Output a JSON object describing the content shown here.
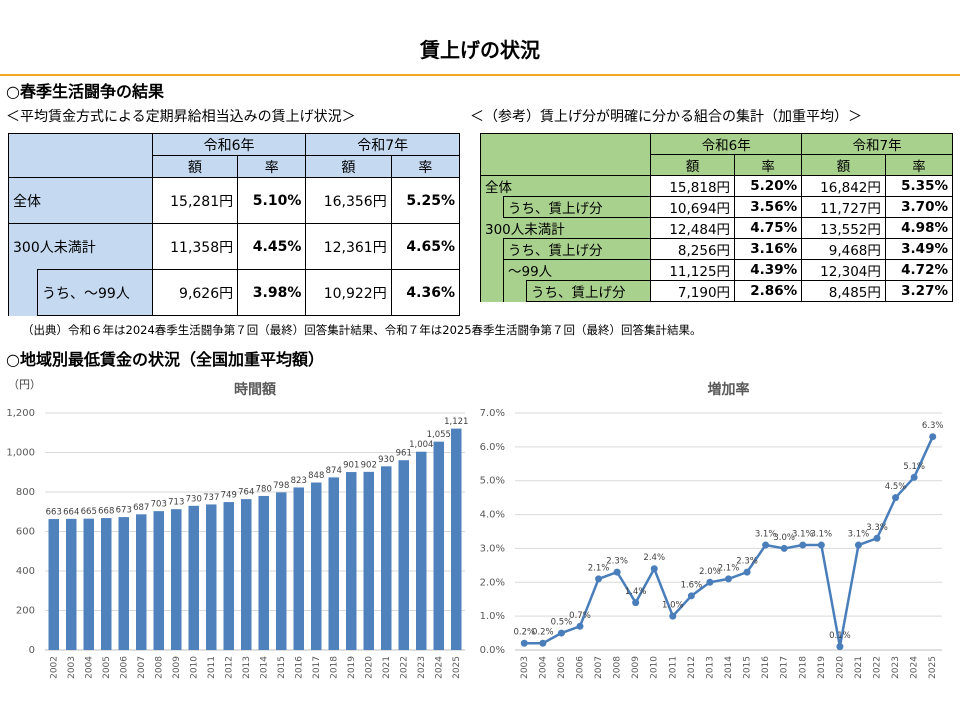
{
  "header": {
    "title": "賃上げの状況"
  },
  "section1": {
    "heading": "○春季生活闘争の結果"
  },
  "table1": {
    "caption": "＜平均賃金方式による定期昇給相当込みの賃上げ状況＞",
    "years": [
      "令和6年",
      "令和7年"
    ],
    "cols": [
      "額",
      "率",
      "額",
      "率"
    ],
    "rows": [
      [
        "全体",
        "15,281円",
        "5.10%",
        "16,356円",
        "5.25%"
      ],
      [
        "300人未満計",
        "11,358円",
        "4.45%",
        "12,361円",
        "4.65%"
      ],
      [
        "うち、～99人",
        "9,626円",
        "3.98%",
        "10,922円",
        "4.36%"
      ]
    ]
  },
  "table2": {
    "caption": "＜（参考）賃上げ分が明確に分かる組合の集計（加重平均）＞",
    "years": [
      "令和6年",
      "令和7年"
    ],
    "cols": [
      "額",
      "率",
      "額",
      "率"
    ],
    "rows": [
      [
        "全体",
        "15,818円",
        "5.20%",
        "16,842円",
        "5.35%"
      ],
      [
        "うち、賃上げ分",
        "10,694円",
        "3.56%",
        "11,727円",
        "3.70%"
      ],
      [
        "300人未満計",
        "12,484円",
        "4.75%",
        "13,552円",
        "4.98%"
      ],
      [
        "うち、賃上げ分",
        "8,256円",
        "3.16%",
        "9,468円",
        "3.49%"
      ],
      [
        "～99人",
        "11,125円",
        "4.39%",
        "12,304円",
        "4.72%"
      ],
      [
        "うち、賃上げ分",
        "7,190円",
        "2.86%",
        "8,485円",
        "3.27%"
      ]
    ]
  },
  "note": "（出典）令和６年は2024春季生活闘争第７回（最終）回答集計結果、令和７年は2025春季生活闘争第７回（最終）回答集計結果。",
  "section2": {
    "heading": "○地域別最低賃金の状況（全国加重平均額）"
  },
  "chart_data": [
    {
      "type": "bar",
      "title": "時間額",
      "y_label": "（円）",
      "color": "#4f81bd",
      "grid": true,
      "categories": [
        "2002",
        "2003",
        "2004",
        "2005",
        "2006",
        "2007",
        "2008",
        "2009",
        "2010",
        "2011",
        "2012",
        "2013",
        "2014",
        "2015",
        "2016",
        "2017",
        "2018",
        "2019",
        "2020",
        "2021",
        "2022",
        "2023",
        "2024",
        "2025"
      ],
      "values": [
        663,
        664,
        665,
        668,
        673,
        687,
        703,
        713,
        730,
        737,
        749,
        764,
        780,
        798,
        823,
        848,
        874,
        901,
        902,
        930,
        961,
        1004,
        1055,
        1121
      ],
      "value_labels": [
        "663",
        "664",
        "665",
        "668",
        "673",
        "687",
        "703",
        "713",
        "730",
        "737",
        "749",
        "764",
        "780",
        "798",
        "823",
        "848",
        "874",
        "901",
        "902",
        "930",
        "961",
        "1,004",
        "1,055",
        "1,121"
      ],
      "ylim": [
        0,
        1200
      ],
      "yticks": [
        0,
        200,
        400,
        600,
        800,
        {
          "value": 1000,
          "label": "1,000"
        },
        {
          "value": 1200,
          "label": "1,200"
        }
      ]
    },
    {
      "type": "line",
      "title": "増加率",
      "color": "#4a7ebb",
      "grid": true,
      "categories": [
        "2003",
        "2004",
        "2005",
        "2006",
        "2007",
        "2008",
        "2009",
        "2010",
        "2011",
        "2012",
        "2013",
        "2014",
        "2015",
        "2016",
        "2017",
        "2018",
        "2019",
        "2020",
        "2021",
        "2022",
        "2023",
        "2024",
        "2025"
      ],
      "values": [
        0.2,
        0.2,
        0.5,
        0.7,
        2.1,
        2.3,
        1.4,
        2.4,
        1.0,
        1.6,
        2.0,
        2.1,
        2.3,
        3.1,
        3.0,
        3.1,
        3.1,
        0.1,
        3.1,
        3.3,
        4.5,
        5.1,
        6.3
      ],
      "value_labels": [
        "0.2%",
        "0.2%",
        "0.5%",
        "0.7%",
        "2.1%",
        "2.3%",
        "1.4%",
        "2.4%",
        "1.0%",
        "1.6%",
        "2.0%",
        "2.1%",
        "2.3%",
        "3.1%",
        "3.0%",
        "3.1%",
        "3.1%",
        "0.1%",
        "3.1%",
        "3.3%",
        "4.5%",
        "5.1%",
        "6.3%"
      ],
      "ylim": [
        0,
        7
      ],
      "yticks": [
        {
          "value": 0,
          "label": "0.0%"
        },
        {
          "value": 1,
          "label": "1.0%"
        },
        {
          "value": 2,
          "label": "2.0%"
        },
        {
          "value": 3,
          "label": "3.0%"
        },
        {
          "value": 4,
          "label": "4.0%"
        },
        {
          "value": 5,
          "label": "5.0%"
        },
        {
          "value": 6,
          "label": "6.0%"
        },
        {
          "value": 7,
          "label": "7.0%"
        }
      ]
    }
  ]
}
